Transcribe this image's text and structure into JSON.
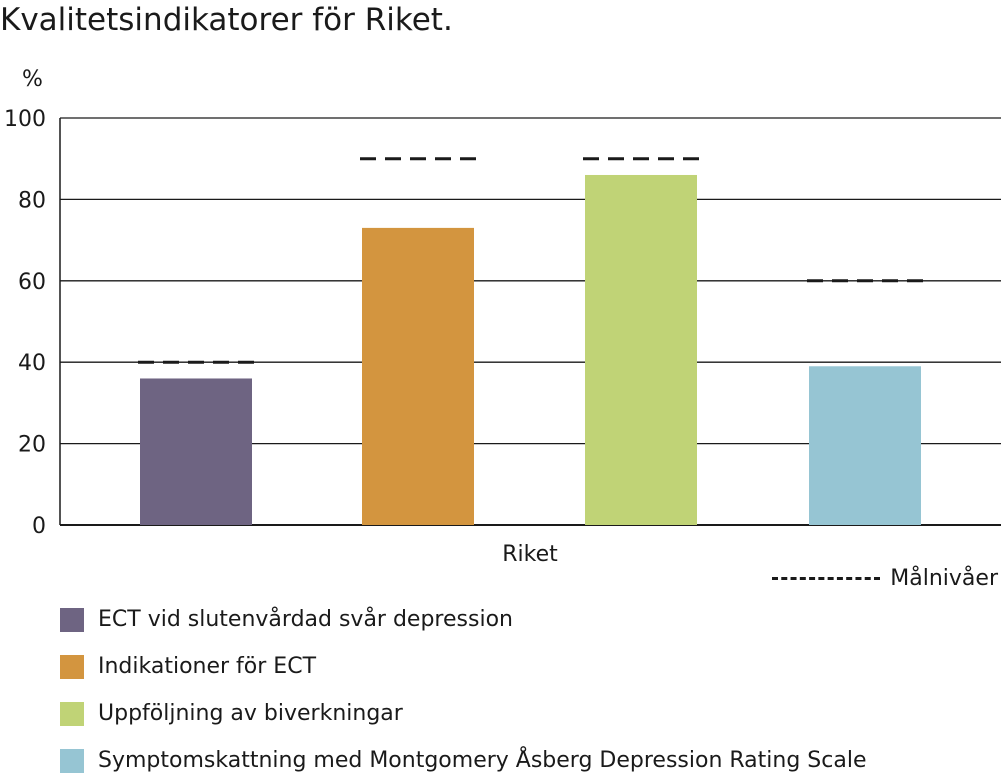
{
  "chart_data": {
    "type": "bar",
    "title": "Kvalitetsindikatorer för Riket.",
    "ylabel": "%",
    "xlabel": "",
    "categories": [
      "Riket"
    ],
    "ylim": [
      0,
      100
    ],
    "yticks": [
      0,
      20,
      40,
      60,
      80,
      100
    ],
    "grid": true,
    "series": [
      {
        "name": "ECT vid slutenvårdad svår depression",
        "values": [
          36
        ],
        "target": 40,
        "color": "#6e6482"
      },
      {
        "name": "Indikationer för ECT",
        "values": [
          73
        ],
        "target": 90,
        "color": "#d3953f"
      },
      {
        "name": "Uppföljning av biverkningar",
        "values": [
          86
        ],
        "target": 90,
        "color": "#c0d376"
      },
      {
        "name": "Symptomskattning med Montgomery Åsberg Depression Rating Scale",
        "values": [
          39
        ],
        "target": 60,
        "color": "#96c5d3"
      }
    ],
    "target_legend_label": "Målnivåer",
    "legend_position": "bottom"
  }
}
